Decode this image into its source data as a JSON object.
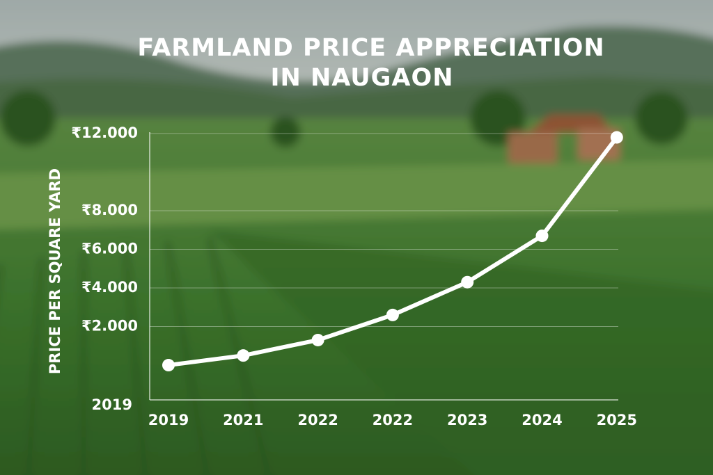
{
  "chart_data": {
    "type": "line",
    "title_lines": [
      "FARMLAND PRICE APPRECIATION",
      "IN NAUGAON"
    ],
    "y_label": "PRICE PER SQUARE YARD",
    "y_axis_bottom_label": "2019",
    "categories": [
      "2019",
      "2021",
      "2022",
      "2022",
      "2023",
      "2024",
      "2025"
    ],
    "values": [
      0,
      500,
      1300,
      2600,
      4300,
      6700,
      11800
    ],
    "color": "#ffffff",
    "ylim": [
      -1800,
      12000
    ],
    "yticks": [
      {
        "value": 2000,
        "label": "₹2.000"
      },
      {
        "value": 4000,
        "label": "₹4.000"
      },
      {
        "value": 6000,
        "label": "₹6.000"
      },
      {
        "value": 8000,
        "label": "₹8.000"
      },
      {
        "value": 12000,
        "label": "₹12.000"
      }
    ],
    "grid": true
  }
}
